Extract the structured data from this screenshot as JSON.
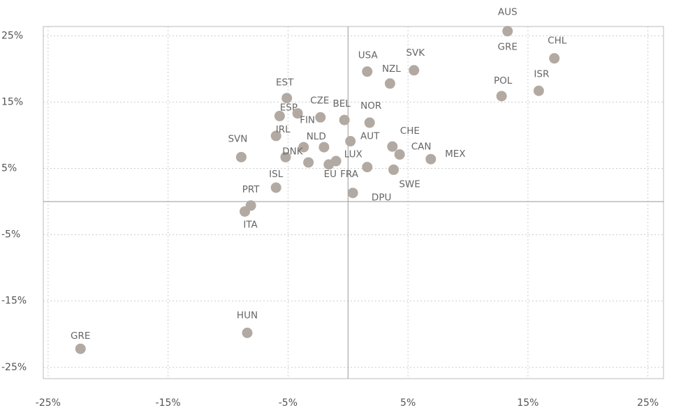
{
  "chart_data": {
    "type": "scatter",
    "color": "#b2aaa2",
    "grid": true,
    "xlim": [
      -25.4,
      26.3
    ],
    "ylim": [
      -26.7,
      26.4
    ],
    "xticks": [
      {
        "value": -25,
        "label": "-25%"
      },
      {
        "value": -15,
        "label": "-15%"
      },
      {
        "value": -5,
        "label": "-5%"
      },
      {
        "value": 5,
        "label": "5%"
      },
      {
        "value": 15,
        "label": "15%"
      },
      {
        "value": 25,
        "label": "25%"
      }
    ],
    "yticks": [
      {
        "value": 25,
        "label": "25%"
      },
      {
        "value": 15,
        "label": "15%"
      },
      {
        "value": 5,
        "label": "5%"
      },
      {
        "value": -5,
        "label": "-5%"
      },
      {
        "value": -15,
        "label": "-15%"
      },
      {
        "value": -25,
        "label": "-25%"
      }
    ],
    "categories": [
      "AUS",
      "CHL",
      "POL",
      "ISR",
      "USA",
      "SVK",
      "NZL",
      "EST",
      "CZE",
      "ESP",
      "FIN",
      "BEL",
      "NOR",
      "IRL",
      "SVN",
      "NLD",
      "DNK",
      "AUT",
      "LUX",
      "EU",
      "FRA",
      "CHE",
      "CAN",
      "MEX",
      "SWE",
      "DPU",
      "ISL",
      "PRT",
      "ITA",
      "HUN",
      "GRE",
      null,
      null
    ],
    "x": [
      13.3,
      17.2,
      12.8,
      15.9,
      1.6,
      5.5,
      3.5,
      -5.1,
      -2.3,
      -5.7,
      -4.2,
      -0.3,
      1.8,
      -6.0,
      -8.9,
      -3.7,
      -5.2,
      0.2,
      1.6,
      -1.6,
      -1.0,
      3.7,
      4.3,
      6.9,
      3.8,
      0.4,
      -6.0,
      -8.1,
      -8.6,
      -8.4,
      -22.3,
      -2.0,
      -3.3
    ],
    "values": [
      25.7,
      21.6,
      15.9,
      16.7,
      19.6,
      19.8,
      17.8,
      15.6,
      12.7,
      12.9,
      13.3,
      12.3,
      11.9,
      9.9,
      6.7,
      8.2,
      6.7,
      9.1,
      5.2,
      5.6,
      6.1,
      8.3,
      7.1,
      6.4,
      4.8,
      1.3,
      2.1,
      -0.6,
      -1.5,
      -19.8,
      -22.2,
      8.2,
      5.9
    ],
    "annotations": [
      {
        "text": "GRE",
        "x": 13.3,
        "y": 23.3
      }
    ]
  }
}
